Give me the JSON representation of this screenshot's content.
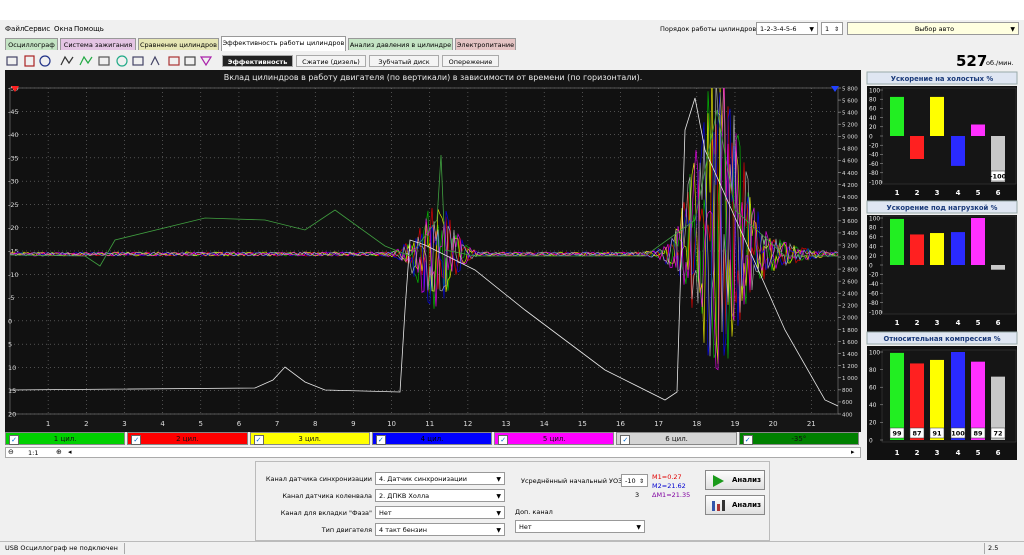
{
  "menu": [
    "Файл",
    "Сервис",
    "Окна",
    "Помощь"
  ],
  "cylinder_order": {
    "label": "Порядок работы цилиндров",
    "value": "1-2-3-4-5-6",
    "spin": 1
  },
  "auto_select": "Выбор авто",
  "tabs": [
    "Осциллограф",
    "Система зажигания",
    "Сравнение цилиндров",
    "Эффективность работы цилиндров",
    "Анализ давления в цилиндре",
    "Электропитание"
  ],
  "subtabs": [
    "Эффективность",
    "Сжатие (дизель)",
    "Зубчатый диск",
    "Опережение"
  ],
  "rpm": {
    "value": 527,
    "unit": "об./мин."
  },
  "main_chart": {
    "title": "Вклад цилиндров в работу двигателя (по вертикали) в зависимости от времени (по горизонтали).",
    "xlim": [
      0,
      21.7
    ],
    "xticks": [
      1,
      2,
      3,
      4,
      5,
      6,
      7,
      8,
      9,
      10,
      11,
      12,
      13,
      14,
      15,
      16,
      17,
      18,
      19,
      20,
      21
    ],
    "ylim": [
      -50,
      20
    ],
    "y_inverted": true,
    "yticks": [
      -50,
      -45,
      -40,
      -35,
      -30,
      -25,
      -20,
      -15,
      -10,
      -5,
      0,
      5,
      10,
      15,
      20
    ],
    "y2lim": [
      400,
      5800
    ],
    "y2ticks": [
      {
        "value": 5800,
        "label": "5 800"
      },
      {
        "value": 5600,
        "label": "5 600"
      },
      {
        "value": 5400,
        "label": "5 400"
      },
      {
        "value": 5200,
        "label": "5 200"
      },
      {
        "value": 5000,
        "label": "5 000"
      },
      {
        "value": 4800,
        "label": "4 800"
      },
      {
        "value": 4600,
        "label": "4 600"
      },
      {
        "value": 4400,
        "label": "4 400"
      },
      {
        "value": 4200,
        "label": "4 200"
      },
      {
        "value": 4000,
        "label": "4 000"
      },
      {
        "value": 3800,
        "label": "3 800"
      },
      {
        "value": 3600,
        "label": "3 600"
      },
      {
        "value": 3400,
        "label": "3 400"
      },
      {
        "value": 3200,
        "label": "3 200"
      },
      {
        "value": 3000,
        "label": "3 000"
      },
      {
        "value": 2800,
        "label": "2 800"
      },
      {
        "value": 2600,
        "label": "2 600"
      },
      {
        "value": 2400,
        "label": "2 400"
      },
      {
        "value": 2200,
        "label": "2 200"
      },
      {
        "value": 2000,
        "label": "2 000"
      },
      {
        "value": 1800,
        "label": "1 800"
      },
      {
        "value": 1600,
        "label": "1 600"
      },
      {
        "value": 1400,
        "label": "1 400"
      },
      {
        "value": 1200,
        "label": "1 200"
      },
      {
        "value": 1000,
        "label": "1 000"
      },
      800,
      600,
      400
    ],
    "grid": true
  },
  "legend": [
    {
      "name": "1 цил.",
      "color": "#00d000"
    },
    {
      "name": "2 цил.",
      "color": "#ff0000"
    },
    {
      "name": "3 цил.",
      "color": "#ffff00"
    },
    {
      "name": "4 цил.",
      "color": "#0000ff"
    },
    {
      "name": "5 цил.",
      "color": "#ff00ff"
    },
    {
      "name": "6 цил.",
      "color": "#d4d4d4"
    },
    {
      "name": "-35°",
      "color": "#008000"
    }
  ],
  "zoom": "1:1",
  "bar_charts": [
    {
      "type": "bar",
      "title": "Ускорение на холостых %",
      "categories": [
        "1",
        "2",
        "3",
        "4",
        "5",
        "6"
      ],
      "values": [
        85,
        -50,
        85,
        -65,
        25,
        -100
      ],
      "value_labels": [
        null,
        null,
        null,
        null,
        null,
        "-100"
      ],
      "colors": [
        "#22ee22",
        "#ff2020",
        "#ffff00",
        "#2a2aff",
        "#ff30ff",
        "#c8c8c8"
      ],
      "ylim": [
        -100,
        100
      ],
      "yticks": [
        100,
        80,
        60,
        40,
        20,
        0,
        -20,
        -40,
        -60,
        -80,
        -100
      ]
    },
    {
      "type": "bar",
      "title": "Ускорение под нагрузкой %",
      "categories": [
        "1",
        "2",
        "3",
        "4",
        "5",
        "6"
      ],
      "values": [
        98,
        65,
        68,
        70,
        100,
        -10
      ],
      "colors": [
        "#22ee22",
        "#ff2020",
        "#ffff00",
        "#2a2aff",
        "#ff30ff",
        "#c8c8c8"
      ],
      "ylim": [
        -100,
        100
      ],
      "yticks": [
        100,
        80,
        60,
        40,
        20,
        0,
        -20,
        -40,
        -60,
        -80,
        -100
      ]
    },
    {
      "type": "bar",
      "title": "Относительная компрессия %",
      "categories": [
        "1",
        "2",
        "3",
        "4",
        "5",
        "6"
      ],
      "values": [
        99,
        87,
        91,
        100,
        89,
        72
      ],
      "data_labels": true,
      "colors": [
        "#22ee22",
        "#ff2020",
        "#ffff00",
        "#2a2aff",
        "#ff30ff",
        "#c8c8c8"
      ],
      "ylim": [
        0,
        100
      ],
      "yticks": [
        100,
        80,
        60,
        40,
        20,
        0
      ]
    }
  ],
  "settings": {
    "sync_channel": {
      "label": "Канал датчика синхронизации",
      "value": "4. Датчик синхронизации"
    },
    "crank_channel": {
      "label": "Канал датчика коленвала",
      "value": "2. ДПКВ Холла"
    },
    "phase_channel": {
      "label": "Канал для вкладки \"Фаза\"",
      "value": "Нет"
    },
    "engine_type": {
      "label": "Тип двигателя",
      "value": "4 такт бензин"
    },
    "uoz": {
      "label": "Усреднённый начальный УОЗ",
      "value": -10,
      "count": 3
    },
    "extra_channel": {
      "label": "Доп. канал",
      "value": "Нет"
    }
  },
  "markers": [
    "M1=0.27",
    "M2=21.62",
    "ΔM1=21.35"
  ],
  "buttons": [
    "Анализ",
    "Анализ"
  ],
  "status": {
    "message": "USB Осциллограф не подключен",
    "version": "2.5"
  }
}
